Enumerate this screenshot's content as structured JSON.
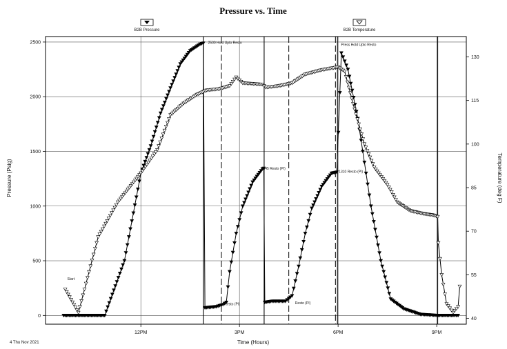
{
  "chart_data": {
    "type": "line",
    "title": "Pressure vs. Time",
    "xlabel": "Time (Hours)",
    "ylabel_left": "Pressure (Psig)",
    "ylabel_right": "Temperature (deg F)",
    "footer": "4 Thu Nov 2021",
    "x_unit": "hours from start",
    "x_ticks": [
      {
        "x": 1,
        "label": "12PM"
      },
      {
        "x": 4,
        "label": "3PM"
      },
      {
        "x": 7,
        "label": "6PM"
      },
      {
        "x": 10,
        "label": "9PM"
      }
    ],
    "xlim": [
      -1.9,
      10.9
    ],
    "ylim_left": [
      -80,
      2550
    ],
    "y_ticks_left": [
      0,
      500,
      1000,
      1500,
      2000,
      2500
    ],
    "ylim_right": [
      38,
      137
    ],
    "y_ticks_right": [
      40,
      55,
      70,
      85,
      100,
      115,
      130
    ],
    "grid": true,
    "event_lines_solid": [
      2.9,
      4.75,
      6.98,
      10.03
    ],
    "event_lines_dashed": [
      3.45,
      5.5,
      6.92
    ],
    "legend": [
      {
        "label": "B2B Pressure",
        "marker": "filled triangle down"
      },
      {
        "label": "B2B Temperature",
        "marker": "open triangle down"
      }
    ],
    "series": [
      {
        "name": "B2B Pressure",
        "axis": "left",
        "marker": "filled",
        "points": [
          [
            -1.35,
            0
          ],
          [
            -0.9,
            0
          ],
          [
            -0.5,
            0
          ],
          [
            -0.1,
            0
          ],
          [
            0.5,
            500
          ],
          [
            1.0,
            1300
          ],
          [
            1.3,
            1550
          ],
          [
            1.6,
            1850
          ],
          [
            1.9,
            2080
          ],
          [
            2.2,
            2300
          ],
          [
            2.5,
            2420
          ],
          [
            2.8,
            2480
          ],
          [
            2.9,
            2490
          ],
          [
            2.95,
            70
          ],
          [
            3.3,
            80
          ],
          [
            3.5,
            100
          ],
          [
            3.6,
            120
          ],
          [
            3.7,
            400
          ],
          [
            3.9,
            750
          ],
          [
            4.1,
            1000
          ],
          [
            4.4,
            1220
          ],
          [
            4.7,
            1340
          ],
          [
            4.74,
            1345
          ],
          [
            4.77,
            120
          ],
          [
            5.0,
            130
          ],
          [
            5.4,
            130
          ],
          [
            5.6,
            180
          ],
          [
            5.8,
            450
          ],
          [
            6.0,
            750
          ],
          [
            6.2,
            980
          ],
          [
            6.5,
            1180
          ],
          [
            6.8,
            1300
          ],
          [
            6.96,
            1310
          ],
          [
            7.1,
            2400
          ],
          [
            7.3,
            2250
          ],
          [
            7.6,
            1800
          ],
          [
            7.8,
            1400
          ],
          [
            8.0,
            1000
          ],
          [
            8.3,
            500
          ],
          [
            8.6,
            150
          ],
          [
            9.0,
            60
          ],
          [
            9.5,
            10
          ],
          [
            10.0,
            0
          ],
          [
            10.5,
            0
          ],
          [
            10.65,
            0
          ]
        ]
      },
      {
        "name": "B2B Temperature",
        "axis": "right",
        "marker": "open",
        "points": [
          [
            -1.3,
            50
          ],
          [
            -0.9,
            42
          ],
          [
            -0.3,
            68
          ],
          [
            0.3,
            80
          ],
          [
            1.0,
            90
          ],
          [
            1.5,
            98
          ],
          [
            1.9,
            110
          ],
          [
            2.3,
            114
          ],
          [
            2.7,
            117
          ],
          [
            3.0,
            118.5
          ],
          [
            3.4,
            119
          ],
          [
            3.7,
            120
          ],
          [
            3.9,
            123
          ],
          [
            4.1,
            121
          ],
          [
            4.7,
            120.5
          ],
          [
            4.8,
            119.5
          ],
          [
            5.2,
            120
          ],
          [
            5.6,
            121
          ],
          [
            6.0,
            124
          ],
          [
            6.5,
            125.5
          ],
          [
            7.0,
            126.5
          ],
          [
            7.2,
            125
          ],
          [
            7.5,
            112
          ],
          [
            7.8,
            100
          ],
          [
            8.1,
            92
          ],
          [
            8.5,
            86
          ],
          [
            8.8,
            80
          ],
          [
            9.2,
            77
          ],
          [
            9.6,
            76
          ],
          [
            9.9,
            75.5
          ],
          [
            10.03,
            75
          ],
          [
            10.05,
            66
          ],
          [
            10.15,
            55
          ],
          [
            10.3,
            45
          ],
          [
            10.5,
            42
          ],
          [
            10.65,
            44
          ],
          [
            10.7,
            51
          ]
        ]
      }
    ],
    "annotations": [
      {
        "x": 3.0,
        "y_left": 2490,
        "text": "2500 Hold Upto Resto"
      },
      {
        "x": 7.05,
        "y_left": 2470,
        "text": "Press Hold Upto Resto"
      },
      {
        "x": 4.62,
        "y_left": 1340,
        "text": "1345 Resto (PI)"
      },
      {
        "x": 6.98,
        "y_left": 1310,
        "text": "1310 Resto (PI)"
      },
      {
        "x": 3.5,
        "y_left": 100,
        "text": "Resto (PI)"
      },
      {
        "x": 5.65,
        "y_left": 110,
        "text": "Resto (PI)"
      },
      {
        "x": -1.28,
        "y_left": 330,
        "text": "Start"
      }
    ]
  }
}
